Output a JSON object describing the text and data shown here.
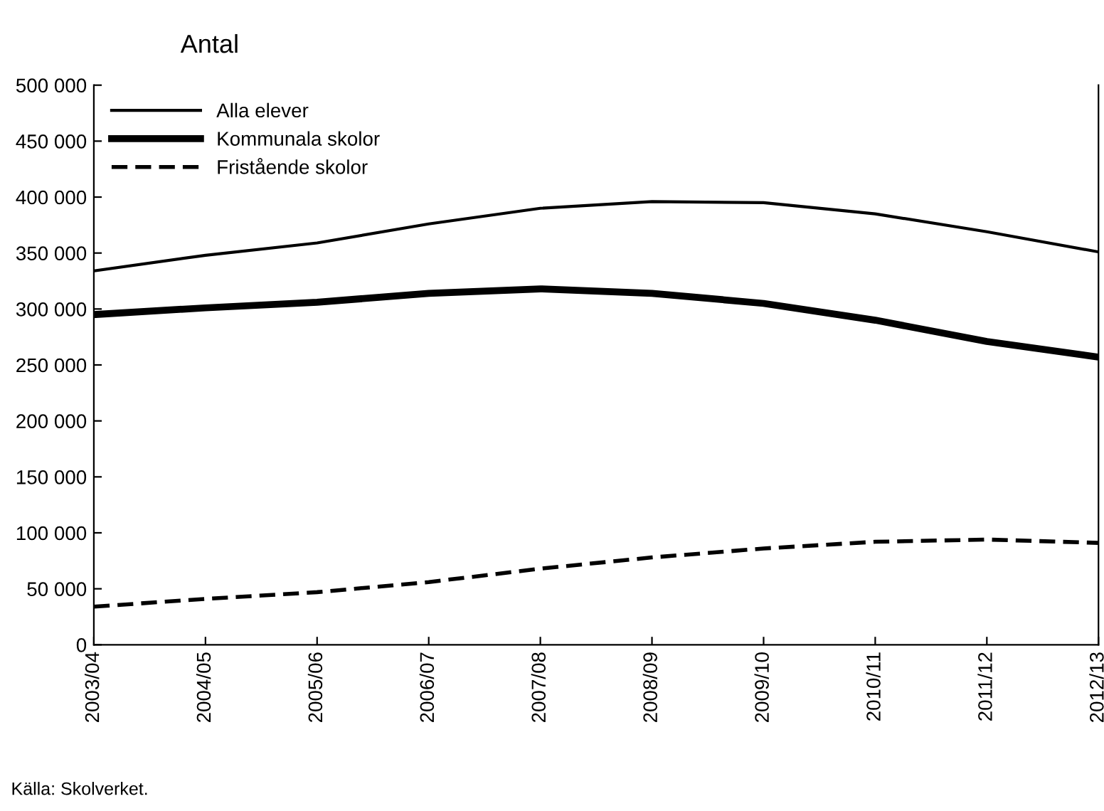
{
  "chart_data": {
    "type": "line",
    "ylabel": "Antal",
    "categories": [
      "2003/04",
      "2004/05",
      "2005/06",
      "2006/07",
      "2007/08",
      "2008/09",
      "2009/10",
      "2010/11",
      "2011/12",
      "2012/13"
    ],
    "series": [
      {
        "name": "Alla elever",
        "color": "#000000",
        "line_style": "solid",
        "values": [
          334000,
          348000,
          359000,
          376000,
          390000,
          396000,
          395000,
          385000,
          369000,
          351000
        ]
      },
      {
        "name": "Kommunala skolor",
        "color": "#000000",
        "line_style": "solid",
        "values": [
          295000,
          301000,
          306000,
          314000,
          318000,
          314000,
          305000,
          290000,
          271000,
          257000
        ]
      },
      {
        "name": "Fristående skolor",
        "color": "#000000",
        "line_style": "dashed",
        "values": [
          34000,
          41000,
          47000,
          56000,
          68000,
          78000,
          86000,
          92000,
          94000,
          91000
        ]
      }
    ],
    "ylim": [
      0,
      500000
    ],
    "yticks": [
      {
        "value": 0,
        "label": "0"
      },
      {
        "value": 50000,
        "label": "50 000"
      },
      {
        "value": 100000,
        "label": "100 000"
      },
      {
        "value": 150000,
        "label": "150 000"
      },
      {
        "value": 200000,
        "label": "200 000"
      },
      {
        "value": 250000,
        "label": "250 000"
      },
      {
        "value": 300000,
        "label": "300 000"
      },
      {
        "value": 350000,
        "label": "350 000"
      },
      {
        "value": 400000,
        "label": "400 000"
      },
      {
        "value": 450000,
        "label": "450 000"
      },
      {
        "value": 500000,
        "label": "500 000"
      }
    ],
    "grid": false,
    "legend": "top left",
    "marker": "none",
    "annotations": [
      "Källa: Skolverket."
    ]
  }
}
